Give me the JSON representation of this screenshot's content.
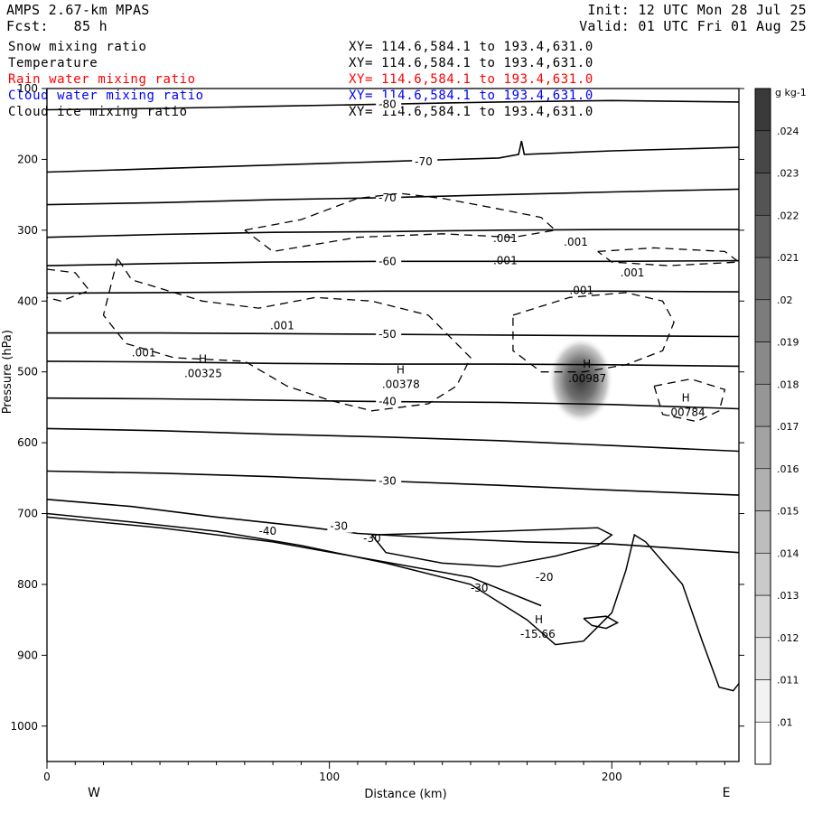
{
  "header": {
    "model": "AMPS 2.67-km MPAS",
    "forecast": "Fcst:   85 h",
    "init": "Init: 12 UTC Mon 28 Jul 25",
    "valid": "Valid: 01 UTC Fri 01 Aug 25"
  },
  "fields": [
    {
      "name": "Snow mixing ratio",
      "xy": "XY= 114.6,584.1 to 193.4,631.0",
      "color": "#000000"
    },
    {
      "name": "Temperature",
      "xy": "XY= 114.6,584.1 to 193.4,631.0",
      "color": "#000000"
    },
    {
      "name": "Rain water mixing ratio",
      "xy": "XY= 114.6,584.1 to 193.4,631.0",
      "color": "#ff0000"
    },
    {
      "name": "Cloud water mixing ratio",
      "xy": "XY= 114.6,584.1 to 193.4,631.0",
      "color": "#0000ff"
    },
    {
      "name": "Cloud ice mixing ratio",
      "xy": "XY= 114.6,584.1 to 193.4,631.0",
      "color": "#000000"
    }
  ],
  "chart_data": {
    "type": "contour cross-section",
    "xlabel": "Distance (km)",
    "ylabel": "Pressure (hPa)",
    "xlim": [
      0,
      245
    ],
    "ylim": [
      1050,
      100
    ],
    "x_ticks": [
      0,
      100,
      200
    ],
    "y_ticks": [
      100,
      200,
      300,
      400,
      500,
      600,
      700,
      800,
      900,
      1000
    ],
    "y_scale": "linear",
    "endpoint_labels": {
      "left": "W",
      "right": "E"
    },
    "colorbar": {
      "unit": "g kg-1",
      "ticks": [
        ".01",
        ".011",
        ".012",
        ".013",
        ".014",
        ".015",
        ".016",
        ".017",
        ".018",
        ".019",
        ".02",
        ".021",
        ".022",
        ".023",
        ".024"
      ],
      "range": [
        0.0095,
        0.025
      ]
    },
    "temperature_contours": [
      {
        "label": "-80",
        "points": [
          [
            0,
            130
          ],
          [
            40,
            128
          ],
          [
            80,
            125
          ],
          [
            120,
            122
          ],
          [
            160,
            119
          ],
          [
            200,
            117
          ],
          [
            245,
            119
          ]
        ]
      },
      {
        "label": "-70",
        "points": [
          [
            0,
            218
          ],
          [
            40,
            213
          ],
          [
            80,
            208
          ],
          [
            120,
            203
          ],
          [
            160,
            198
          ],
          [
            167,
            193
          ],
          [
            168,
            174
          ],
          [
            169,
            193
          ],
          [
            200,
            188
          ],
          [
            245,
            183
          ]
        ]
      },
      {
        "label": "-70",
        "points": [
          [
            0,
            264
          ],
          [
            40,
            261
          ],
          [
            80,
            257
          ],
          [
            120,
            254
          ],
          [
            160,
            250
          ],
          [
            200,
            246
          ],
          [
            245,
            242
          ]
        ]
      },
      {
        "label": "",
        "points": [
          [
            0,
            310
          ],
          [
            40,
            306
          ],
          [
            80,
            303
          ],
          [
            120,
            302
          ],
          [
            160,
            300
          ],
          [
            200,
            299
          ],
          [
            245,
            299
          ]
        ]
      },
      {
        "label": "-60",
        "points": [
          [
            0,
            350
          ],
          [
            40,
            347
          ],
          [
            80,
            345
          ],
          [
            120,
            344
          ],
          [
            160,
            344
          ],
          [
            200,
            344
          ],
          [
            245,
            343
          ]
        ]
      },
      {
        "label": "",
        "points": [
          [
            0,
            389
          ],
          [
            40,
            388
          ],
          [
            80,
            387
          ],
          [
            120,
            386
          ],
          [
            160,
            386
          ],
          [
            200,
            386
          ],
          [
            245,
            387
          ]
        ]
      },
      {
        "label": "-50",
        "points": [
          [
            0,
            445
          ],
          [
            40,
            445
          ],
          [
            80,
            446
          ],
          [
            120,
            447
          ],
          [
            160,
            448
          ],
          [
            200,
            449
          ],
          [
            245,
            450
          ]
        ]
      },
      {
        "label": "",
        "points": [
          [
            0,
            485
          ],
          [
            40,
            486
          ],
          [
            80,
            488
          ],
          [
            120,
            489
          ],
          [
            160,
            489
          ],
          [
            200,
            490
          ],
          [
            245,
            492
          ]
        ]
      },
      {
        "label": "-40",
        "points": [
          [
            0,
            537
          ],
          [
            40,
            538
          ],
          [
            80,
            540
          ],
          [
            120,
            542
          ],
          [
            160,
            543
          ],
          [
            200,
            546
          ],
          [
            245,
            552
          ]
        ]
      },
      {
        "label": "",
        "points": [
          [
            0,
            580
          ],
          [
            40,
            583
          ],
          [
            80,
            588
          ],
          [
            120,
            592
          ],
          [
            160,
            597
          ],
          [
            200,
            604
          ],
          [
            245,
            612
          ]
        ]
      },
      {
        "label": "-30",
        "points": [
          [
            0,
            640
          ],
          [
            40,
            643
          ],
          [
            80,
            648
          ],
          [
            120,
            654
          ],
          [
            160,
            660
          ],
          [
            200,
            667
          ],
          [
            245,
            674
          ]
        ]
      },
      {
        "label": "-30",
        "points": [
          [
            0,
            680
          ],
          [
            30,
            690
          ],
          [
            60,
            705
          ],
          [
            90,
            718
          ],
          [
            110,
            728
          ],
          [
            140,
            735
          ],
          [
            170,
            740
          ],
          [
            200,
            743
          ],
          [
            245,
            755
          ]
        ]
      }
    ],
    "cloud_ice_contour_label": ".001",
    "maxima_labels": [
      {
        "label": ".00325",
        "x": 55,
        "p": 505
      },
      {
        "label": ".00378",
        "x": 125,
        "p": 520
      },
      {
        "label": ".00987",
        "x": 191,
        "p": 512
      },
      {
        "label": ".00784",
        "x": 226,
        "p": 560
      },
      {
        "label": "-15.66",
        "x": 174,
        "p": 873
      }
    ],
    "shaded_maximum": {
      "x": 189,
      "p": 512,
      "value": 0.024
    }
  }
}
